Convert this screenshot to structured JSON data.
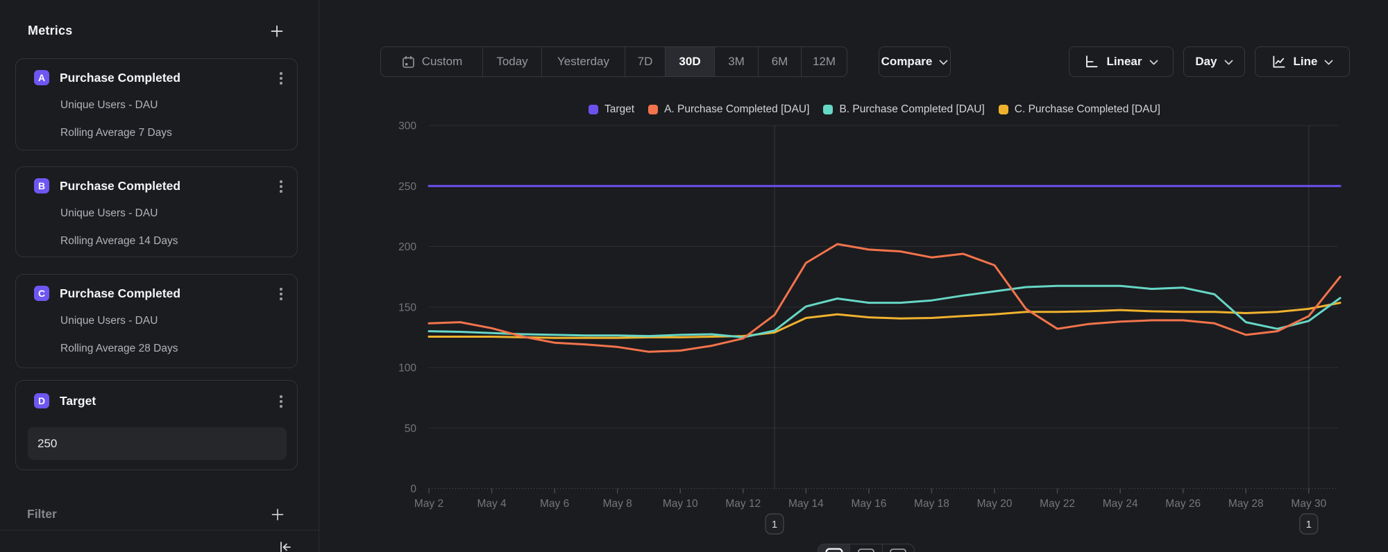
{
  "colors": {
    "background": "#1b1c1f",
    "accent_purple": "#6e56f2",
    "series_target": "#6d50ee",
    "series_a": "#f3744c",
    "series_b": "#66d7c6",
    "series_c": "#f0b22e"
  },
  "sidebar": {
    "title": "Metrics",
    "metrics": [
      {
        "letter": "A",
        "title": "Purchase Completed",
        "line1": "Unique Users - DAU",
        "line2": "Rolling Average 7 Days"
      },
      {
        "letter": "B",
        "title": "Purchase Completed",
        "line1": "Unique Users - DAU",
        "line2": "Rolling Average 14 Days"
      },
      {
        "letter": "C",
        "title": "Purchase Completed",
        "line1": "Unique Users - DAU",
        "line2": "Rolling Average 28 Days"
      }
    ],
    "target": {
      "letter": "D",
      "title": "Target",
      "value": "250"
    },
    "filter_label": "Filter"
  },
  "toolbar": {
    "tabs": [
      {
        "label": "Custom",
        "icon": "calendar",
        "active": false
      },
      {
        "label": "Today",
        "active": false
      },
      {
        "label": "Yesterday",
        "active": false
      },
      {
        "label": "7D",
        "active": false
      },
      {
        "label": "30D",
        "active": true
      },
      {
        "label": "3M",
        "active": false
      },
      {
        "label": "6M",
        "active": false
      },
      {
        "label": "12M",
        "active": false
      }
    ],
    "compare_label": "Compare",
    "scale_label": "Linear",
    "granularity_label": "Day",
    "chart_type_label": "Line"
  },
  "chart_data": {
    "type": "line",
    "title": "",
    "xlabel": "",
    "ylabel": "",
    "ylim": [
      0,
      300
    ],
    "ytick_step": 50,
    "xtick_every": 2,
    "grid": true,
    "legend_position": "top-center",
    "categories": [
      "May 2",
      "May 3",
      "May 4",
      "May 5",
      "May 6",
      "May 7",
      "May 8",
      "May 9",
      "May 10",
      "May 11",
      "May 12",
      "May 13",
      "May 14",
      "May 15",
      "May 16",
      "May 17",
      "May 18",
      "May 19",
      "May 20",
      "May 21",
      "May 22",
      "May 23",
      "May 24",
      "May 25",
      "May 26",
      "May 27",
      "May 28",
      "May 29",
      "May 30",
      "May 31"
    ],
    "series": [
      {
        "name": "Target",
        "color": "#6d50ee",
        "values": [
          250,
          250,
          250,
          250,
          250,
          250,
          250,
          250,
          250,
          250,
          250,
          250,
          250,
          250,
          250,
          250,
          250,
          250,
          250,
          250,
          250,
          250,
          250,
          250,
          250,
          250,
          250,
          250,
          250,
          250
        ]
      },
      {
        "name": "A. Purchase Completed [DAU]",
        "color": "#f3744c",
        "values": [
          136.5,
          137.5,
          132.5,
          125.5,
          120.5,
          119,
          117,
          113,
          114,
          118,
          124,
          143.5,
          186.5,
          202,
          197.5,
          196,
          191,
          194,
          184.5,
          148.5,
          132,
          136,
          138,
          139,
          139,
          136.5,
          127,
          130,
          142.5,
          175
        ]
      },
      {
        "name": "B. Purchase Completed [DAU]",
        "color": "#66d7c6",
        "values": [
          130,
          129.5,
          128.5,
          127.5,
          127,
          126.5,
          126.5,
          126,
          127,
          127.5,
          125,
          130.5,
          150.5,
          157,
          153.5,
          153.5,
          155.5,
          159.5,
          163,
          166.5,
          167.5,
          167.5,
          167.5,
          165,
          166,
          160.5,
          137.5,
          132,
          138.5,
          157.5
        ]
      },
      {
        "name": "C. Purchase Completed [DAU]",
        "color": "#f0b22e",
        "values": [
          125.5,
          125.5,
          125.5,
          125,
          124.5,
          124.5,
          124.5,
          125,
          125,
          125.5,
          126,
          129,
          141,
          144,
          141.5,
          140.5,
          141,
          142.5,
          144,
          146,
          146,
          146.5,
          147.5,
          146.5,
          146,
          146,
          145,
          146,
          148.5,
          153.5
        ]
      }
    ],
    "annotations": [
      {
        "index": 11,
        "label": "1"
      },
      {
        "index": 28,
        "label": "1"
      }
    ]
  },
  "legend": [
    {
      "label": "Target",
      "color": "#6d50ee"
    },
    {
      "label": "A. Purchase Completed [DAU]",
      "color": "#f3744c"
    },
    {
      "label": "B. Purchase Completed [DAU]",
      "color": "#66d7c6"
    },
    {
      "label": "C. Purchase Completed [DAU]",
      "color": "#f0b22e"
    }
  ]
}
